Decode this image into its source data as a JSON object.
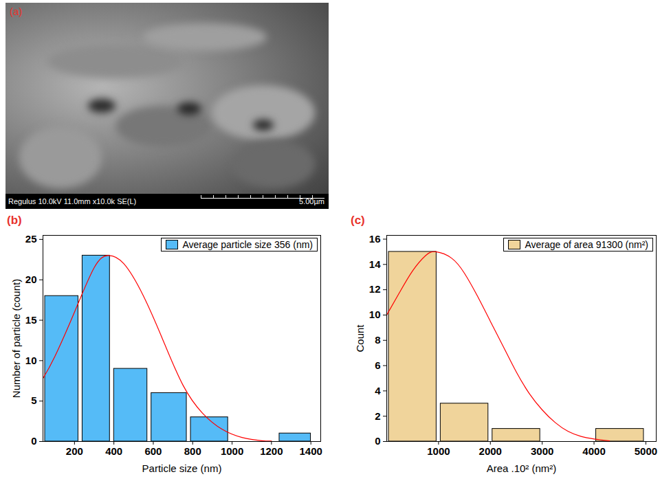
{
  "image_panel": {
    "label": "(a)",
    "info_bar": "Regulus 10.0kV 11.0mm x10.0k SE(L)",
    "scale_bar": "5.00µm"
  },
  "chart_data": [
    {
      "type": "histogram",
      "panel_label": "(b)",
      "x_label": "Particle size (nm)",
      "y_label": "Number of particle (count)",
      "bins": [
        40,
        230,
        390,
        580,
        780,
        990,
        1230,
        1410
      ],
      "xlim": [
        40,
        1450
      ],
      "xticks": [
        200,
        400,
        600,
        800,
        1000,
        1200,
        1400
      ],
      "ylim": [
        0,
        25.5
      ],
      "yticks": [
        0,
        5,
        10,
        15,
        20,
        25
      ],
      "legend": "top-right",
      "series": [
        {
          "name": "Average particle size 356 (nm)",
          "type": "bar",
          "color": "#55bbf7",
          "values": [
            18,
            23,
            9,
            6,
            3,
            0,
            1
          ]
        },
        {
          "type": "line",
          "color": "#ff0000",
          "x": [
            40,
            100,
            200,
            300,
            370,
            450,
            550,
            650,
            750,
            850,
            950,
            1050,
            1150,
            1200
          ],
          "values": [
            7.8,
            10.5,
            16,
            21.5,
            23,
            22,
            18,
            12.5,
            7,
            3.5,
            1.5,
            0.5,
            0.1,
            0.05
          ]
        }
      ]
    },
    {
      "type": "histogram",
      "panel_label": "(c)",
      "x_label": "Area .10² (nm²)",
      "y_label": "Count",
      "bins": [
        0,
        1000,
        2000,
        3000,
        4000,
        5000
      ],
      "xlim": [
        0,
        5200
      ],
      "xticks": [
        1000,
        2000,
        3000,
        4000,
        5000
      ],
      "ylim": [
        0,
        16.3
      ],
      "yticks": [
        0,
        2,
        4,
        6,
        8,
        10,
        12,
        14,
        16
      ],
      "legend": "top-right",
      "series": [
        {
          "name": "Average of area 91300 (nm²)",
          "type": "bar",
          "color": "#f0d49b",
          "values": [
            15,
            3,
            1,
            0,
            1
          ]
        },
        {
          "type": "line",
          "color": "#ff0000",
          "x": [
            0,
            250,
            500,
            750,
            950,
            1250,
            1500,
            1750,
            2000,
            2250,
            2500,
            2750,
            3000,
            3250,
            3500,
            3750,
            4000,
            4300
          ],
          "values": [
            10,
            11.8,
            13.5,
            14.7,
            15,
            14.5,
            13.3,
            11.5,
            9.5,
            7.5,
            5.5,
            3.8,
            2.5,
            1.5,
            0.8,
            0.4,
            0.2,
            0.05
          ]
        }
      ]
    }
  ]
}
